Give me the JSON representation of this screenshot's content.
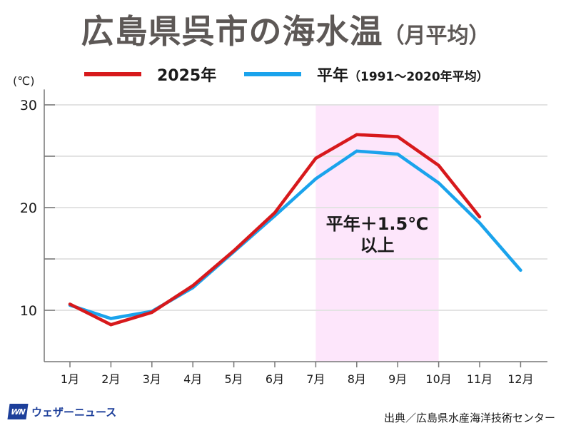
{
  "chart_data": {
    "type": "line",
    "title": "広島県呉市の海水温",
    "subtitle": "（月平均）",
    "xlabel": "",
    "ylabel": "(℃)",
    "categories": [
      "1月",
      "2月",
      "3月",
      "4月",
      "5月",
      "6月",
      "7月",
      "8月",
      "9月",
      "10月",
      "11月",
      "12月"
    ],
    "ylim": [
      5,
      31.5
    ],
    "yticks": [
      10,
      20,
      30
    ],
    "minor_yticks": [
      15,
      25
    ],
    "grid": true,
    "series": [
      {
        "name": "2025年",
        "color": "#d7191c",
        "values": [
          10.6,
          8.6,
          9.8,
          12.4,
          15.8,
          19.5,
          24.8,
          27.1,
          26.9,
          24.1,
          19.1,
          null
        ]
      },
      {
        "name": "平年（1991～2020年平均）",
        "color": "#1aa3ec",
        "values": [
          10.5,
          9.2,
          9.9,
          12.2,
          15.7,
          19.2,
          22.8,
          25.5,
          25.2,
          22.4,
          18.5,
          13.9
        ]
      }
    ],
    "highlight": {
      "from": "7月",
      "to": "10月",
      "color": "#fde6fb",
      "label_line1": "平年＋1.5℃",
      "label_line2": "以上"
    },
    "legend_position": "top"
  },
  "legend": {
    "series1_label": "2025年",
    "series2_label": "平年",
    "series2_paren": "（1991～2020年平均）"
  },
  "footer": {
    "logo_mark": "WN",
    "logo_name": "ウェザーニュース",
    "source": "出典／広島県水産海洋技術センター"
  }
}
